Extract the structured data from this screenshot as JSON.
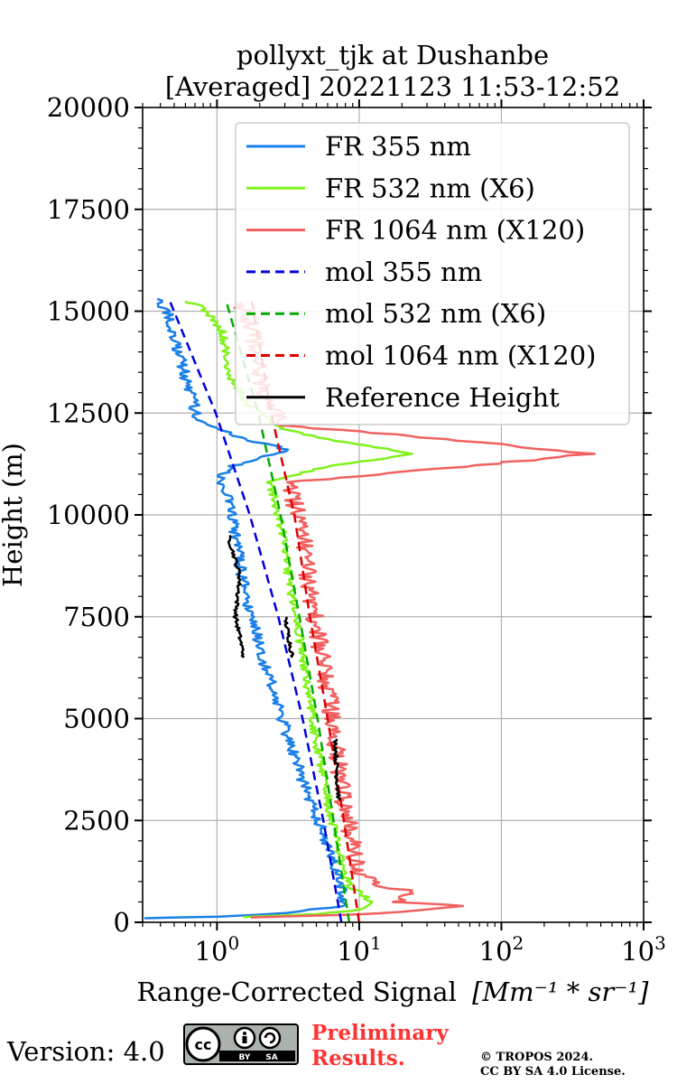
{
  "chart_data": {
    "type": "line",
    "title": "pollyxt_tjk at Dushanbe",
    "subtitle": "[Averaged] 20221123 11:53-12:52",
    "xlabel": "Range-Corrected Signal",
    "xlabel_units": "[Mm⁻¹ * sr⁻¹]",
    "ylabel": "Height (m)",
    "xscale": "log",
    "xlim": [
      0.3,
      1000
    ],
    "ylim": [
      0,
      20000
    ],
    "grid": true,
    "legend_position": "top-right",
    "x_ticks": [
      {
        "value": 1,
        "base": "10",
        "exp": "0"
      },
      {
        "value": 10,
        "base": "10",
        "exp": "1"
      },
      {
        "value": 100,
        "base": "10",
        "exp": "2"
      },
      {
        "value": 1000,
        "base": "10",
        "exp": "3"
      }
    ],
    "y_ticks": [
      "0",
      "2500",
      "5000",
      "7500",
      "10000",
      "12500",
      "15000",
      "17500",
      "20000"
    ],
    "series": [
      {
        "name": "FR 355 nm",
        "color": "#1a7fe8",
        "style": "solid",
        "noise": 0.09,
        "points": [
          [
            0.3,
            100
          ],
          [
            1.0,
            140
          ],
          [
            3.0,
            230
          ],
          [
            7.5,
            400
          ],
          [
            7.6,
            800
          ],
          [
            6.5,
            1500
          ],
          [
            5.2,
            2500
          ],
          [
            4.0,
            3500
          ],
          [
            3.2,
            4500
          ],
          [
            2.6,
            5500
          ],
          [
            2.1,
            6500
          ],
          [
            1.75,
            7500
          ],
          [
            1.5,
            8500
          ],
          [
            1.35,
            9500
          ],
          [
            1.2,
            10500
          ],
          [
            1.05,
            10900
          ],
          [
            1.3,
            11200
          ],
          [
            3.2,
            11600
          ],
          [
            1.4,
            11900
          ],
          [
            0.75,
            12300
          ],
          [
            0.62,
            13200
          ],
          [
            0.52,
            14200
          ],
          [
            0.45,
            15000
          ],
          [
            0.38,
            15300
          ]
        ]
      },
      {
        "name": "FR 532 nm (X6)",
        "color": "#7ff21a",
        "style": "solid",
        "noise": 0.07,
        "points": [
          [
            1.5,
            130
          ],
          [
            5.0,
            200
          ],
          [
            11.0,
            320
          ],
          [
            12.5,
            500
          ],
          [
            8.5,
            900
          ],
          [
            7.5,
            1500
          ],
          [
            6.4,
            2500
          ],
          [
            5.7,
            3500
          ],
          [
            5.0,
            4500
          ],
          [
            4.5,
            5500
          ],
          [
            4.0,
            6500
          ],
          [
            3.6,
            7500
          ],
          [
            3.2,
            8500
          ],
          [
            2.9,
            9500
          ],
          [
            2.5,
            10500
          ],
          [
            2.3,
            10800
          ],
          [
            6.0,
            11200
          ],
          [
            25.0,
            11500
          ],
          [
            5.0,
            11900
          ],
          [
            2.5,
            12200
          ],
          [
            1.6,
            12800
          ],
          [
            1.2,
            13500
          ],
          [
            1.1,
            14500
          ],
          [
            0.8,
            15100
          ],
          [
            0.6,
            15250
          ]
        ]
      },
      {
        "name": "FR 1064 nm (X120)",
        "color": "#f26060",
        "style": "solid",
        "noise": 0.15,
        "points": [
          [
            2.0,
            120
          ],
          [
            15.0,
            220
          ],
          [
            50.0,
            400
          ],
          [
            20.0,
            500
          ],
          [
            25.0,
            750
          ],
          [
            15.0,
            900
          ],
          [
            10.0,
            1200
          ],
          [
            9.0,
            2000
          ],
          [
            7.8,
            3000
          ],
          [
            7.2,
            4000
          ],
          [
            6.6,
            5000
          ],
          [
            5.8,
            6000
          ],
          [
            5.2,
            7000
          ],
          [
            4.6,
            8000
          ],
          [
            4.3,
            9000
          ],
          [
            3.8,
            10000
          ],
          [
            3.2,
            10800
          ],
          [
            30.0,
            11100
          ],
          [
            450.0,
            11500
          ],
          [
            30.0,
            11900
          ],
          [
            3.0,
            12200
          ],
          [
            2.2,
            12800
          ],
          [
            2.0,
            13500
          ],
          [
            1.8,
            14500
          ],
          [
            1.5,
            15200
          ]
        ]
      },
      {
        "name": "mol 355 nm",
        "color": "#0000dd",
        "style": "dashed",
        "points": [
          [
            7.5,
            0
          ],
          [
            5.6,
            2500
          ],
          [
            4.0,
            5000
          ],
          [
            2.7,
            7500
          ],
          [
            1.7,
            10000
          ],
          [
            0.98,
            12500
          ],
          [
            0.46,
            15300
          ]
        ]
      },
      {
        "name": "mol 532 nm (X6)",
        "color": "#00aa00",
        "style": "dashed",
        "points": [
          [
            8.5,
            0
          ],
          [
            6.6,
            2500
          ],
          [
            5.1,
            5000
          ],
          [
            3.8,
            7500
          ],
          [
            2.8,
            10000
          ],
          [
            1.95,
            12500
          ],
          [
            1.15,
            15300
          ]
        ]
      },
      {
        "name": "mol 1064 nm (X120)",
        "color": "#dd0000",
        "style": "dashed",
        "points": [
          [
            10.0,
            0
          ],
          [
            7.8,
            2500
          ],
          [
            6.0,
            5000
          ],
          [
            4.5,
            7500
          ],
          [
            3.5,
            10000
          ],
          [
            2.4,
            12500
          ],
          [
            1.75,
            15300
          ]
        ]
      },
      {
        "name": "Reference Height",
        "color": "#000000",
        "style": "solid",
        "noise": 0.03,
        "segments": [
          [
            [
              1.2,
              9500
            ],
            [
              1.45,
              8500
            ],
            [
              1.35,
              7500
            ],
            [
              1.55,
              6500
            ]
          ],
          [
            [
              3.0,
              7500
            ],
            [
              3.2,
              7000
            ],
            [
              3.4,
              6500
            ]
          ],
          [
            [
              6.8,
              4500
            ],
            [
              6.9,
              4000
            ],
            [
              7.0,
              3500
            ],
            [
              7.2,
              3000
            ]
          ]
        ]
      }
    ]
  },
  "footer": {
    "version": "Version: 4.0",
    "license_badge": {
      "icon": "cc-by-sa-icon",
      "left": "BY",
      "right": "SA"
    },
    "preliminary_line1": "Preliminary",
    "preliminary_line2": "Results.",
    "copyright_line1": "© TROPOS 2024.",
    "copyright_line2": "CC BY SA 4.0 License."
  }
}
